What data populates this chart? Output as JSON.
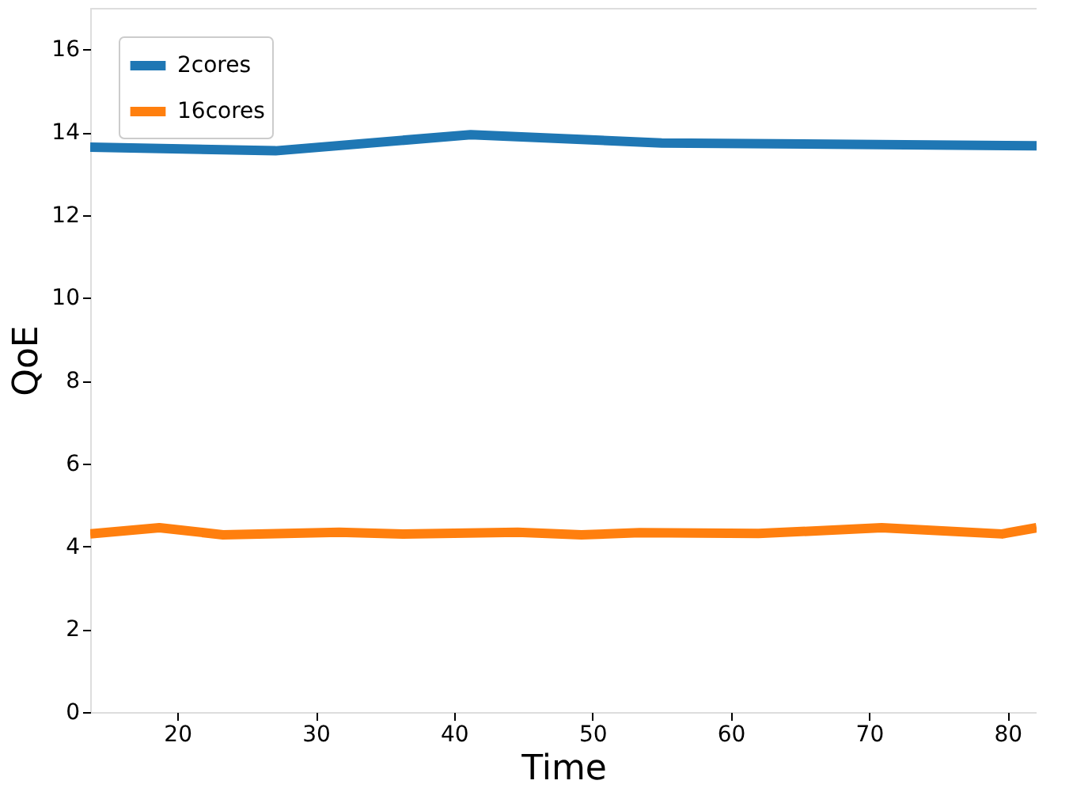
{
  "chart_data": {
    "type": "line",
    "xlabel": "Time",
    "ylabel": "QoE",
    "xlim": [
      13.7,
      82.1
    ],
    "xticks": [
      20,
      30,
      40,
      50,
      60,
      70,
      80
    ],
    "ylim": [
      0,
      17
    ],
    "yticks": [
      0,
      2,
      4,
      6,
      8,
      10,
      12,
      14,
      16
    ],
    "grid": false,
    "legend": "top left",
    "series": [
      {
        "name": "2cores",
        "color": "#1f77b4",
        "x": [
          13.7,
          27.1,
          41.2,
          55,
          82.1
        ],
        "values": [
          13.64,
          13.55,
          13.94,
          13.74,
          13.67
        ]
      },
      {
        "name": "16cores",
        "color": "#ff7f0e",
        "x": [
          13.7,
          18.7,
          23.3,
          31.7,
          36.3,
          44.6,
          49.2,
          53.4,
          62.0,
          70.9,
          79.6,
          82.1
        ],
        "values": [
          4.3,
          4.45,
          4.28,
          4.34,
          4.3,
          4.34,
          4.28,
          4.33,
          4.31,
          4.45,
          4.3,
          4.45
        ]
      }
    ]
  }
}
